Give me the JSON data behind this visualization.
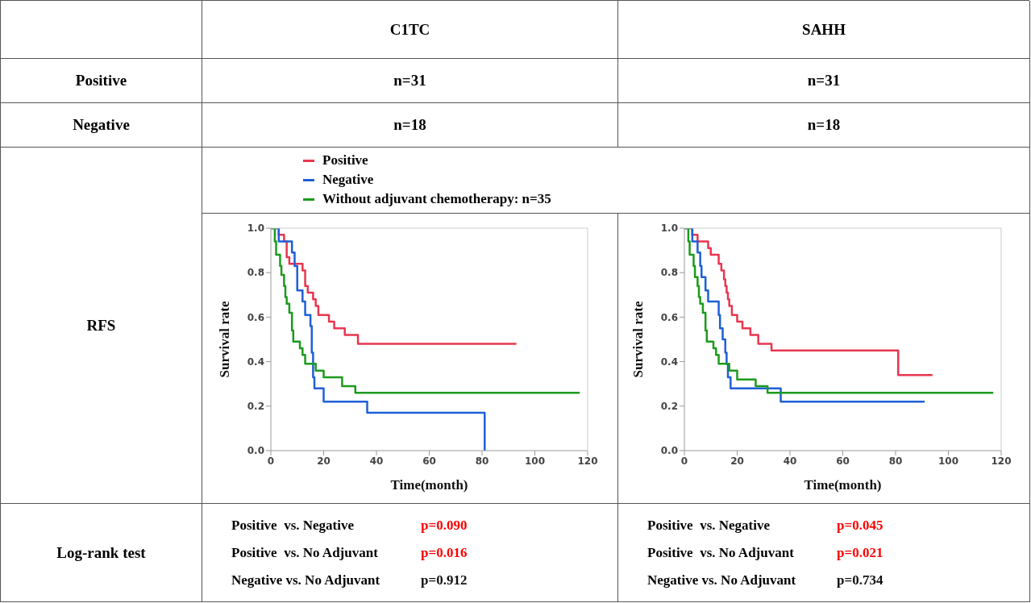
{
  "chart_data": [
    {
      "type": "step",
      "title": "C1TC",
      "xlabel": "Time(month)",
      "ylabel": "Survival rate",
      "xlim": [
        0,
        120
      ],
      "xticks": [
        0,
        20,
        40,
        60,
        80,
        100,
        120
      ],
      "ylim": [
        0,
        1
      ],
      "yticks": [
        {
          "value": 0,
          "label": "0.0"
        },
        {
          "value": 0.2,
          "label": "0.2"
        },
        {
          "value": 0.4,
          "label": "0.4"
        },
        {
          "value": 0.6,
          "label": "0.6"
        },
        {
          "value": 0.8,
          "label": "0.8"
        },
        {
          "value": 1,
          "label": "1.0"
        }
      ],
      "legend": "top",
      "grid": false,
      "marker": "none",
      "annotations": [
        "Positive",
        "Negative",
        "RFS",
        "Log-rank test",
        "n=31",
        "n=18",
        "Positive  vs. Negative",
        "p=0.090",
        "Positive  vs. No Adjuvant",
        "p=0.016",
        "Negative vs. No Adjuvant",
        "p=0.912"
      ],
      "series": [
        {
          "name": "Positive",
          "color": "#e8364f",
          "x": [
            0,
            3,
            5,
            6,
            7,
            12,
            13,
            14,
            16,
            17,
            18,
            22,
            24,
            28,
            33,
            93
          ],
          "values": [
            1,
            0.97,
            0.94,
            0.87,
            0.84,
            0.81,
            0.74,
            0.71,
            0.68,
            0.65,
            0.61,
            0.58,
            0.55,
            0.52,
            0.48,
            0.48
          ]
        },
        {
          "name": "Negative",
          "color": "#1f5fd6",
          "x": [
            0,
            3,
            8,
            9,
            10,
            12,
            13,
            15,
            15.5,
            16,
            16.5,
            20,
            36.5,
            81
          ],
          "values": [
            1,
            0.94,
            0.89,
            0.83,
            0.72,
            0.67,
            0.61,
            0.56,
            0.44,
            0.33,
            0.28,
            0.22,
            0.17,
            0
          ]
        },
        {
          "name": "Without adjuvant chemotherapy: n=35",
          "color": "#1c9a1c",
          "x": [
            0,
            1.5,
            2,
            3.5,
            4,
            5,
            5.5,
            6,
            7,
            8,
            8.5,
            11,
            12,
            13,
            17,
            20,
            27,
            32,
            117
          ],
          "values": [
            1,
            0.94,
            0.88,
            0.83,
            0.79,
            0.74,
            0.69,
            0.66,
            0.62,
            0.54,
            0.49,
            0.46,
            0.43,
            0.39,
            0.36,
            0.33,
            0.29,
            0.26,
            0.26
          ]
        }
      ]
    },
    {
      "type": "step",
      "title": "SAHH",
      "xlabel": "Time(month)",
      "ylabel": "Survival rate",
      "xlim": [
        0,
        120
      ],
      "xticks": [
        0,
        20,
        40,
        60,
        80,
        100,
        120
      ],
      "ylim": [
        0,
        1
      ],
      "yticks": [
        {
          "value": 0,
          "label": "0.0"
        },
        {
          "value": 0.2,
          "label": "0.2"
        },
        {
          "value": 0.4,
          "label": "0.4"
        },
        {
          "value": 0.6,
          "label": "0.6"
        },
        {
          "value": 0.8,
          "label": "0.8"
        },
        {
          "value": 1,
          "label": "1.0"
        }
      ],
      "grid": false,
      "marker": "none",
      "annotations": [
        "n=31",
        "n=18",
        "Positive  vs. Negative",
        "p=0.045",
        "Positive  vs. No Adjuvant",
        "p=0.021",
        "Negative vs. No Adjuvant",
        "p=0.734"
      ],
      "series": [
        {
          "color": "#e8364f",
          "x": [
            0,
            3,
            5,
            9,
            10,
            13,
            14,
            15,
            15.5,
            16,
            16.5,
            17,
            18,
            20,
            22,
            25,
            28,
            33,
            81,
            94
          ],
          "values": [
            1,
            0.97,
            0.94,
            0.91,
            0.88,
            0.84,
            0.81,
            0.77,
            0.74,
            0.71,
            0.68,
            0.65,
            0.61,
            0.58,
            0.55,
            0.52,
            0.48,
            0.45,
            0.34,
            0.34
          ]
        },
        {
          "color": "#1f5fd6",
          "x": [
            0,
            3,
            5,
            6,
            6.5,
            8,
            9,
            13,
            13.5,
            14.5,
            15.5,
            16,
            16.5,
            17.5,
            36.5,
            91
          ],
          "values": [
            1,
            0.94,
            0.89,
            0.83,
            0.78,
            0.72,
            0.67,
            0.61,
            0.55,
            0.5,
            0.44,
            0.39,
            0.33,
            0.28,
            0.22,
            0.22
          ]
        },
        {
          "color": "#1c9a1c",
          "x": [
            0,
            1.5,
            2,
            3.5,
            4,
            5,
            5.5,
            6,
            7,
            8,
            8.5,
            11,
            12,
            13,
            17,
            20,
            27,
            31.5,
            117
          ],
          "values": [
            1,
            0.94,
            0.88,
            0.83,
            0.78,
            0.74,
            0.69,
            0.66,
            0.62,
            0.54,
            0.49,
            0.46,
            0.43,
            0.39,
            0.36,
            0.32,
            0.29,
            0.26,
            0.26
          ]
        }
      ]
    }
  ]
}
